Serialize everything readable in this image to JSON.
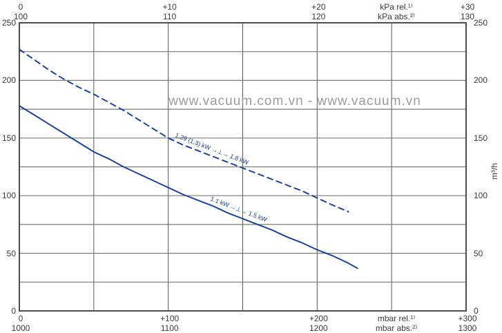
{
  "watermark": "www.vacuum.com.vn - www.vacuum.vn",
  "colors": {
    "curve": "#1c429f",
    "grid": "#7a7a7a",
    "border": "#4d4d4d",
    "text": "#3a3a3a",
    "watermark": "#9c9c9c"
  },
  "chart_data": {
    "type": "line",
    "title": "",
    "x_axis_top": {
      "row1": {
        "ticks": [
          "0",
          "+10",
          "+20",
          "+30"
        ],
        "unit": "kPa rel.¹⁾"
      },
      "row2": {
        "ticks": [
          "100",
          "110",
          "120",
          "130"
        ],
        "unit": "kPa abs.²⁾"
      }
    },
    "x_axis_bottom": {
      "row1": {
        "ticks": [
          "0",
          "+100",
          "+200",
          "+300"
        ],
        "unit": "mbar rel.¹⁾"
      },
      "row2": {
        "ticks": [
          "1000",
          "1100",
          "1200",
          "1300"
        ],
        "unit": "mbar abs.²⁾"
      }
    },
    "y_axis": {
      "left_ticks": [
        "250",
        "200",
        "150",
        "100",
        "50",
        "0"
      ],
      "right_ticks": [
        "250",
        "200",
        "150",
        "100",
        "50",
        "0"
      ],
      "unit": "m³/h"
    },
    "xlim": [
      0,
      30
    ],
    "ylim": [
      0,
      250
    ],
    "x_grid_step": 5,
    "y_grid_step": 25,
    "grid": true,
    "series": [
      {
        "name": "pressure-flow-curve-60hz",
        "label": "1.29 (1.3) kW →⊥→ 1.8 kW",
        "style": "dashed",
        "points": [
          [
            0,
            227
          ],
          [
            1,
            218
          ],
          [
            2,
            209
          ],
          [
            3,
            201
          ],
          [
            4,
            194
          ],
          [
            5,
            188
          ],
          [
            6,
            181
          ],
          [
            7,
            174
          ],
          [
            8,
            166
          ],
          [
            9,
            158
          ],
          [
            10,
            150
          ],
          [
            11,
            144
          ],
          [
            12,
            139
          ],
          [
            13,
            134
          ],
          [
            14,
            129
          ],
          [
            15,
            124
          ],
          [
            16,
            119
          ],
          [
            17,
            114
          ],
          [
            18,
            109
          ],
          [
            19,
            104
          ],
          [
            20,
            98
          ],
          [
            21,
            92
          ],
          [
            22.1,
            86
          ]
        ]
      },
      {
        "name": "pressure-flow-curve-50hz",
        "label": "1.1 kW →⊥→ 1.5 kW",
        "style": "solid",
        "points": [
          [
            0,
            178
          ],
          [
            1,
            170
          ],
          [
            2,
            162
          ],
          [
            3,
            154
          ],
          [
            4,
            146
          ],
          [
            5,
            138
          ],
          [
            6,
            132
          ],
          [
            7,
            125
          ],
          [
            8,
            119
          ],
          [
            9,
            113
          ],
          [
            10,
            107
          ],
          [
            11,
            101
          ],
          [
            12,
            96
          ],
          [
            13,
            91
          ],
          [
            14,
            85
          ],
          [
            15,
            80
          ],
          [
            16,
            75
          ],
          [
            17,
            70
          ],
          [
            18,
            64
          ],
          [
            19,
            59
          ],
          [
            20,
            53
          ],
          [
            21,
            48
          ],
          [
            22,
            42
          ],
          [
            22.7,
            37
          ]
        ]
      }
    ]
  }
}
